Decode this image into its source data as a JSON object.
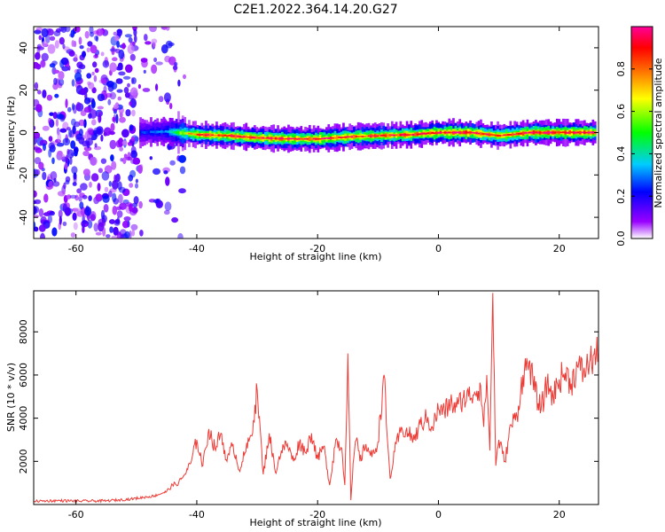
{
  "title": "C2E1.2022.364.14.20.G27",
  "chart_data": [
    {
      "type": "heatmap",
      "xlabel": "Height of straight line (km)",
      "ylabel": "Frequency (Hz)",
      "xlim": [
        -67,
        26.5
      ],
      "ylim": [
        -50,
        50
      ],
      "xticks": [
        -60,
        -40,
        -20,
        0,
        20
      ],
      "yticks": [
        -40,
        -20,
        0,
        20,
        40
      ],
      "colorbar": {
        "label": "Normalized spectral amplitude",
        "range": [
          0,
          1
        ],
        "ticks": [
          0.0,
          0.2,
          0.4,
          0.6,
          0.8
        ]
      },
      "ridge": [
        {
          "x": -49.5,
          "f": 0,
          "amp": 0.25
        },
        {
          "x": -45,
          "f": 0.5,
          "amp": 0.3
        },
        {
          "x": -40,
          "f": -1,
          "amp": 0.85
        },
        {
          "x": -35,
          "f": -1.5,
          "amp": 0.9
        },
        {
          "x": -30,
          "f": -2.5,
          "amp": 0.9
        },
        {
          "x": -25,
          "f": -3,
          "amp": 0.9
        },
        {
          "x": -20,
          "f": -3,
          "amp": 0.9
        },
        {
          "x": -15,
          "f": -2,
          "amp": 0.9
        },
        {
          "x": -10,
          "f": -1.5,
          "amp": 0.9
        },
        {
          "x": -5,
          "f": -1,
          "amp": 0.9
        },
        {
          "x": 0,
          "f": 0,
          "amp": 0.95
        },
        {
          "x": 5,
          "f": 0,
          "amp": 0.95
        },
        {
          "x": 10,
          "f": -1.5,
          "amp": 0.85
        },
        {
          "x": 15,
          "f": 0,
          "amp": 0.95
        },
        {
          "x": 20,
          "f": 0,
          "amp": 0.95
        },
        {
          "x": 26,
          "f": 0,
          "amp": 0.95
        }
      ],
      "noise_region": {
        "x_from": -67,
        "x_to": -42,
        "amp": 0.2
      }
    },
    {
      "type": "line",
      "xlabel": "Height of straight line (km)",
      "ylabel": "SNR (10 * v/v)",
      "xlim": [
        -67,
        26.5
      ],
      "ylim": [
        0,
        9900
      ],
      "xticks": [
        -60,
        -40,
        -20,
        0,
        20
      ],
      "yticks": [
        2000,
        4000,
        6000,
        8000
      ],
      "color": "#ee3b36",
      "series": [
        {
          "x": [
            -67,
            -63,
            -59,
            -55,
            -51,
            -47,
            -45,
            -44,
            -43,
            -42,
            -41,
            -40,
            -39,
            -38,
            -37,
            -36,
            -35,
            -34,
            -33,
            -32,
            -31,
            -30,
            -29,
            -28,
            -27,
            -26,
            -25,
            -24,
            -23,
            -22,
            -21,
            -20,
            -19,
            -18,
            -17,
            -16,
            -15.5,
            -15,
            -14.5,
            -14,
            -13.5,
            -13,
            -12,
            -11,
            -10,
            -9,
            -8.5,
            -8,
            -7,
            -6,
            -5,
            -4,
            -3,
            -2,
            -1,
            0,
            1,
            2,
            3,
            4,
            5,
            6,
            7,
            7.5,
            8,
            8.5,
            9,
            9.5,
            10,
            11,
            12,
            13,
            14,
            15,
            16,
            17,
            18,
            19,
            20,
            21,
            22,
            23,
            24,
            25,
            26.5
          ],
          "y": [
            150,
            180,
            160,
            170,
            250,
            400,
            600,
            900,
            1000,
            1400,
            1900,
            3000,
            1800,
            3500,
            2600,
            3300,
            2000,
            2800,
            1600,
            2400,
            3200,
            5300,
            1400,
            3300,
            1500,
            2500,
            2800,
            2000,
            2900,
            2400,
            3300,
            2100,
            2700,
            900,
            3000,
            2600,
            900,
            7000,
            200,
            2200,
            3100,
            2000,
            2800,
            2200,
            2900,
            6000,
            3200,
            1200,
            2800,
            3500,
            3300,
            3000,
            3700,
            4000,
            3600,
            4400,
            4300,
            4700,
            4500,
            4900,
            5000,
            5200,
            5500,
            3600,
            6000,
            2500,
            9800,
            1800,
            3000,
            2000,
            3700,
            4100,
            6000,
            6600,
            5200,
            4400,
            5600,
            5000,
            5800,
            6100,
            5600,
            6400,
            6100,
            6600,
            7000
          ]
        }
      ]
    }
  ]
}
